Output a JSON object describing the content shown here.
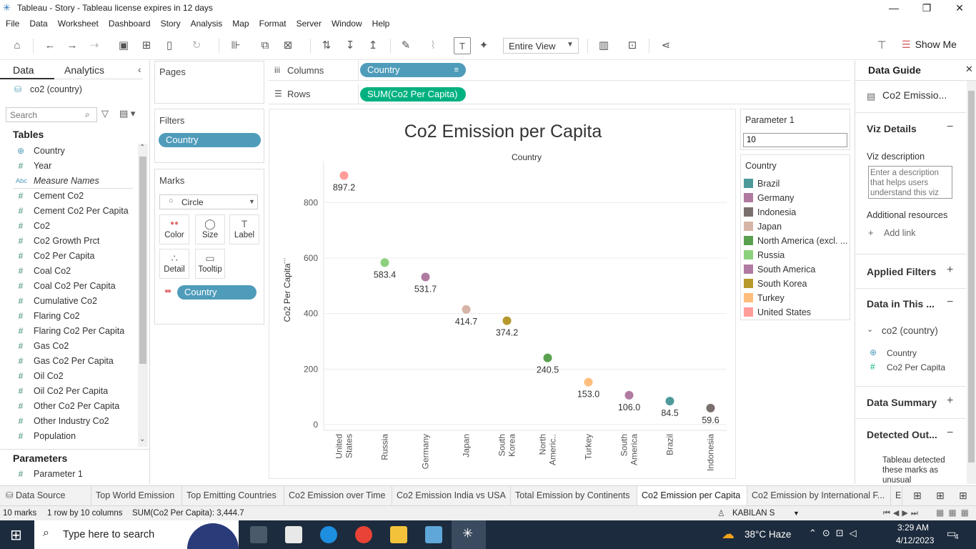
{
  "window": {
    "title": "Tableau - Story - Tableau license expires in 12 days"
  },
  "menu": [
    "File",
    "Data",
    "Worksheet",
    "Dashboard",
    "Story",
    "Analysis",
    "Map",
    "Format",
    "Server",
    "Window",
    "Help"
  ],
  "toolbar": {
    "view_select": "Entire View",
    "show_me": "Show Me"
  },
  "left_pane": {
    "tab_data": "Data",
    "tab_analytics": "Analytics",
    "datasource": "co2 (country)",
    "search_placeholder": "Search",
    "tables_title": "Tables",
    "fields": [
      {
        "icon": "globe-icon",
        "glyph": "⊕",
        "name": "Country"
      },
      {
        "icon": "hash-icon",
        "glyph": "#",
        "name": "Year"
      },
      {
        "icon": "abc-icon",
        "glyph": "Abc",
        "name": "Measure Names"
      },
      {
        "icon": "hash-icon",
        "glyph": "#",
        "name": "Cement Co2"
      },
      {
        "icon": "hash-icon",
        "glyph": "#",
        "name": "Cement Co2 Per Capita"
      },
      {
        "icon": "hash-icon",
        "glyph": "#",
        "name": "Co2"
      },
      {
        "icon": "hash-icon",
        "glyph": "#",
        "name": "Co2 Growth Prct"
      },
      {
        "icon": "hash-icon",
        "glyph": "#",
        "name": "Co2 Per Capita"
      },
      {
        "icon": "hash-icon",
        "glyph": "#",
        "name": "Coal Co2"
      },
      {
        "icon": "hash-icon",
        "glyph": "#",
        "name": "Coal Co2 Per Capita"
      },
      {
        "icon": "hash-icon",
        "glyph": "#",
        "name": "Cumulative Co2"
      },
      {
        "icon": "hash-icon",
        "glyph": "#",
        "name": "Flaring Co2"
      },
      {
        "icon": "hash-icon",
        "glyph": "#",
        "name": "Flaring Co2 Per Capita"
      },
      {
        "icon": "hash-icon",
        "glyph": "#",
        "name": "Gas Co2"
      },
      {
        "icon": "hash-icon",
        "glyph": "#",
        "name": "Gas Co2 Per Capita"
      },
      {
        "icon": "hash-icon",
        "glyph": "#",
        "name": "Oil Co2"
      },
      {
        "icon": "hash-icon",
        "glyph": "#",
        "name": "Oil Co2 Per Capita"
      },
      {
        "icon": "hash-icon",
        "glyph": "#",
        "name": "Other Co2 Per Capita"
      },
      {
        "icon": "hash-icon",
        "glyph": "#",
        "name": "Other Industry Co2"
      },
      {
        "icon": "hash-icon",
        "glyph": "#",
        "name": "Population"
      }
    ],
    "parameters_title": "Parameters",
    "parameter_item": "Parameter 1"
  },
  "cards": {
    "pages": "Pages",
    "filters": "Filters",
    "filter_pill": "Country",
    "marks": "Marks",
    "mark_type": "Circle",
    "mark_buttons": [
      {
        "icon": "color-icon",
        "glyph": "●●",
        "label": "Color"
      },
      {
        "icon": "size-icon",
        "glyph": "◯",
        "label": "Size"
      },
      {
        "icon": "label-icon",
        "glyph": "T",
        "label": "Label"
      },
      {
        "icon": "detail-icon",
        "glyph": "∴",
        "label": "Detail"
      },
      {
        "icon": "tooltip-icon",
        "glyph": "▭",
        "label": "Tooltip"
      }
    ],
    "marks_pill": "Country"
  },
  "shelves": {
    "columns_label": "Columns",
    "columns_pill": "Country",
    "rows_label": "Rows",
    "rows_pill": "SUM(Co2 Per Capita)"
  },
  "parameter_card": {
    "title": "Parameter 1",
    "value": "10"
  },
  "legend": {
    "title": "Country",
    "items": [
      {
        "name": "Brazil",
        "color": "#4e9a9a"
      },
      {
        "name": "Germany",
        "color": "#b07aa1"
      },
      {
        "name": "Indonesia",
        "color": "#79706e"
      },
      {
        "name": "Japan",
        "color": "#d7b5a6"
      },
      {
        "name": "North America (excl. ...",
        "color": "#59a14f"
      },
      {
        "name": "Russia",
        "color": "#8cd17d"
      },
      {
        "name": "South America",
        "color": "#b07aa1"
      },
      {
        "name": "South Korea",
        "color": "#b6992d"
      },
      {
        "name": "Turkey",
        "color": "#ffbe7d"
      },
      {
        "name": "United States",
        "color": "#ff9d9a"
      }
    ]
  },
  "chart_data": {
    "type": "scatter",
    "title": "Co2 Emission per Capita",
    "xlabel": "Country",
    "ylabel": "Co2 Per Capita",
    "ylim": [
      0,
      950
    ],
    "yticks": [
      0,
      200,
      400,
      600,
      800
    ],
    "grid": true,
    "categories": [
      "United States",
      "Russia",
      "Germany",
      "Japan",
      "South Korea",
      "North Americ..",
      "Turkey",
      "South America",
      "Brazil",
      "Indonesia"
    ],
    "category_labels": [
      [
        "United",
        "States"
      ],
      [
        "Russia"
      ],
      [
        "Germany"
      ],
      [
        "Japan"
      ],
      [
        "South",
        "Korea"
      ],
      [
        "North",
        "Americ.."
      ],
      [
        "Turkey"
      ],
      [
        "South",
        "America"
      ],
      [
        "Brazil"
      ],
      [
        "Indonesia"
      ]
    ],
    "values": [
      897.2,
      583.4,
      531.7,
      414.7,
      374.2,
      240.5,
      153.0,
      106.0,
      84.5,
      59.6
    ],
    "value_labels": [
      "897.2",
      "583.4",
      "531.7",
      "414.7",
      "374.2",
      "240.5",
      "153.0",
      "106.0",
      "84.5",
      "59.6"
    ],
    "colors": [
      "#ff9d9a",
      "#8cd17d",
      "#b07aa1",
      "#d7b5a6",
      "#b6992d",
      "#59a14f",
      "#ffbe7d",
      "#b07aa1",
      "#4e9a9a",
      "#79706e"
    ]
  },
  "right_pane": {
    "title": "Data Guide",
    "sheet_name": "Co2 Emissio...",
    "viz_details": "Viz Details",
    "viz_description_label": "Viz description",
    "viz_description_placeholder": "Enter a description that helps users understand this viz",
    "additional_resources": "Additional resources",
    "add_link": "Add link",
    "applied_filters": "Applied Filters",
    "data_in_this": "Data in This ...",
    "datasource": "co2 (country)",
    "fields": [
      "Country",
      "Co2 Per Capita"
    ],
    "data_summary": "Data Summary",
    "detected_outliers": "Detected Out...",
    "detected_text": "Tableau detected these marks as unusual"
  },
  "sheet_tabs": [
    "Data Source",
    "Top World Emission",
    "Top Emitting Countries",
    "Co2 Emission over Time",
    "Co2 Emission India vs USA",
    "Total Emission by Continents",
    "Co2 Emission per Capita",
    "Co2 Emission by International F...",
    "E"
  ],
  "active_tab": "Co2 Emission per Capita",
  "status": {
    "marks": "10 marks",
    "rows_cols": "1 row by 10 columns",
    "sum": "SUM(Co2 Per Capita): 3,444.7",
    "user": "KABILAN S"
  },
  "taskbar": {
    "search_placeholder": "Type here to search",
    "weather": "38°C  Haze",
    "time": "3:29 AM",
    "date": "4/12/2023",
    "notifications": "4"
  }
}
